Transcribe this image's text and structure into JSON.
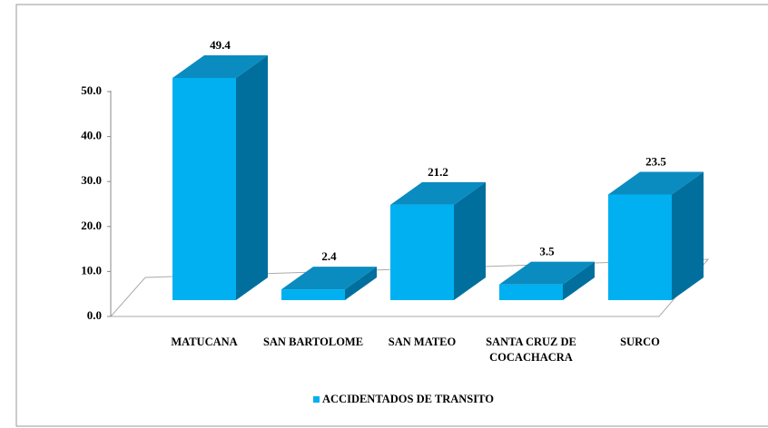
{
  "chart_data": {
    "type": "bar3d",
    "categories": [
      "MATUCANA",
      "SAN BARTOLOME",
      "SAN MATEO",
      "SANTA CRUZ DE COCACHACRA",
      "SURCO"
    ],
    "series": [
      {
        "name": "ACCIDENTADOS DE TRANSITO",
        "color": "#00b0f0",
        "values": [
          49.4,
          2.4,
          21.2,
          3.5,
          23.5
        ]
      }
    ],
    "ylim": [
      0,
      50
    ],
    "yticks": [
      {
        "value": 0,
        "label": "0.0"
      },
      {
        "value": 10,
        "label": "10.0"
      },
      {
        "value": 20,
        "label": "20.0"
      },
      {
        "value": 30,
        "label": "30.0"
      },
      {
        "value": 40,
        "label": "40.0"
      },
      {
        "value": 50,
        "label": "50.0"
      }
    ],
    "grid": false,
    "legend": "bottom"
  }
}
